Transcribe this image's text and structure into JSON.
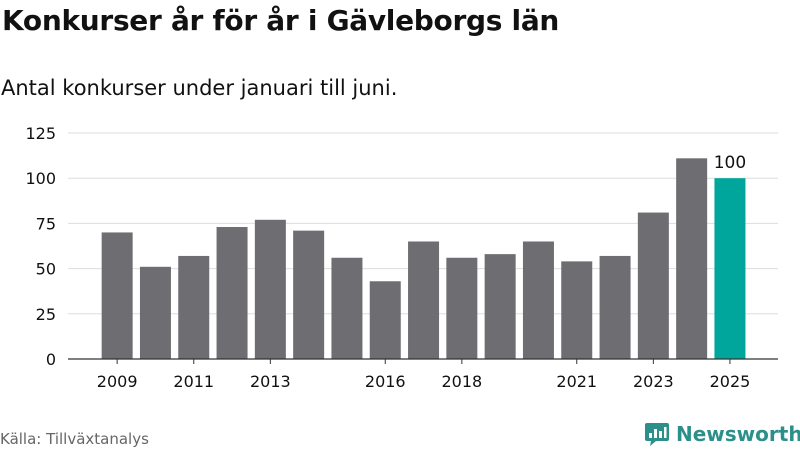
{
  "title": "Konkurser år för år i Gävleborgs län",
  "subtitle": "Antal konkurser under januari till juni.",
  "source": "Källa: Tillväxtanalys",
  "brand": {
    "name": "Newsworthy",
    "icon": "newsworthy-logo-icon"
  },
  "colors": {
    "bar": "#6e6d72",
    "highlight": "#00a69c",
    "grid": "#dddddd",
    "axis": "#333333",
    "brand": "#2b8f8a"
  },
  "chart_data": {
    "type": "bar",
    "categories": [
      "2009",
      "2010",
      "2011",
      "2012",
      "2013",
      "2014",
      "2015",
      "2016",
      "2017",
      "2018",
      "2019",
      "2020",
      "2021",
      "2022",
      "2023",
      "2024",
      "2025"
    ],
    "values": [
      70,
      51,
      57,
      73,
      77,
      71,
      56,
      43,
      65,
      56,
      58,
      65,
      54,
      57,
      81,
      111,
      100
    ],
    "highlight_index": 16,
    "x_tick_labels": [
      "2009",
      "2011",
      "2013",
      "2016",
      "2018",
      "2021",
      "2023",
      "2025"
    ],
    "y_ticks": [
      0,
      25,
      50,
      75,
      100,
      125
    ],
    "ylim": [
      0,
      125
    ],
    "data_labels": [
      {
        "category": "2025",
        "text": "100"
      }
    ],
    "grid": true,
    "xlabel": "",
    "ylabel": ""
  }
}
